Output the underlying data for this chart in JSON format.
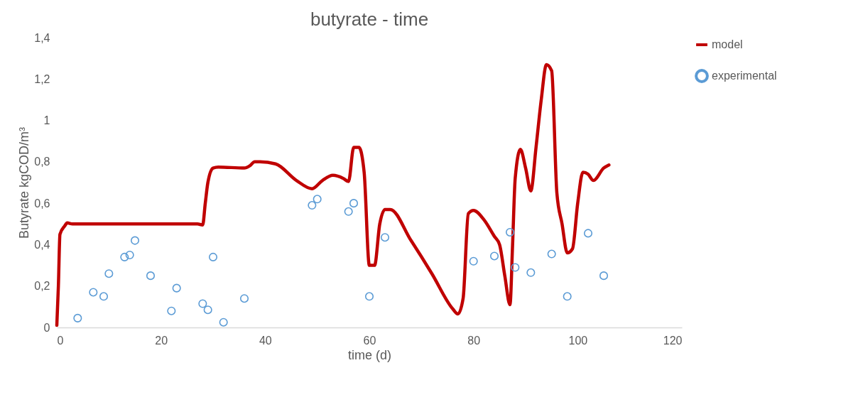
{
  "chart_data": {
    "type": "line",
    "title": "butyrate - time",
    "xlabel": "time (d)",
    "ylabel": "Butyrate kgCOD/m³",
    "xlim": [
      0,
      120
    ],
    "xticks": [
      0,
      20,
      40,
      60,
      80,
      100,
      120
    ],
    "ylim": [
      0,
      1.4
    ],
    "yticks": [
      0,
      {
        "value": 0.2,
        "label": "0,2"
      },
      {
        "value": 0.4,
        "label": "0,4"
      },
      {
        "value": 0.6,
        "label": "0,6"
      },
      {
        "value": 0.8,
        "label": "0,8"
      },
      1,
      {
        "value": 1.2,
        "label": "1,2"
      },
      {
        "value": 1.4,
        "label": "1,4"
      }
    ],
    "grid": false,
    "legend": "right",
    "series": [
      {
        "name": "model",
        "type": "line",
        "color": "#c00000",
        "line_style": "solid",
        "marker": "none",
        "x": [
          0,
          0.3,
          0.6,
          1.5,
          2,
          3,
          27,
          28,
          28.5,
          29,
          30,
          31,
          36,
          37,
          38,
          39,
          42,
          46,
          49,
          51,
          53,
          55,
          56,
          57,
          58,
          59,
          60,
          61,
          62,
          63,
          64,
          68,
          72,
          76,
          77,
          78,
          79,
          80,
          82,
          84,
          85,
          86,
          87,
          87.5,
          88,
          89,
          90,
          91,
          92,
          93,
          94,
          95,
          96,
          97,
          98,
          99,
          100,
          101,
          102,
          103,
          105,
          106
        ],
        "values": [
          0.01,
          0.2,
          0.45,
          0.49,
          0.505,
          0.5,
          0.5,
          0.495,
          0.6,
          0.7,
          0.77,
          0.775,
          0.77,
          0.78,
          0.8,
          0.8,
          0.79,
          0.71,
          0.67,
          0.71,
          0.735,
          0.72,
          0.705,
          0.87,
          0.87,
          0.75,
          0.3,
          0.3,
          0.5,
          0.57,
          0.57,
          0.42,
          0.26,
          0.09,
          0.065,
          0.14,
          0.55,
          0.565,
          0.52,
          0.44,
          0.4,
          0.25,
          0.11,
          0.4,
          0.72,
          0.86,
          0.77,
          0.66,
          0.87,
          1.1,
          1.27,
          1.24,
          0.65,
          0.5,
          0.36,
          0.38,
          0.6,
          0.75,
          0.74,
          0.71,
          0.77,
          0.785
        ]
      },
      {
        "name": "experimental",
        "type": "scatter",
        "color": "#5b9bd5",
        "marker": "circle",
        "x": [
          4,
          7,
          9,
          10,
          13,
          14,
          15,
          18,
          22,
          23,
          28,
          29,
          30,
          32,
          36,
          49,
          50,
          56,
          57,
          60,
          63,
          80,
          84,
          87,
          88,
          91,
          95,
          98,
          102,
          105
        ],
        "values": [
          0.045,
          0.17,
          0.15,
          0.26,
          0.34,
          0.35,
          0.42,
          0.25,
          0.08,
          0.19,
          0.115,
          0.085,
          0.34,
          0.025,
          0.14,
          0.59,
          0.62,
          0.56,
          0.6,
          0.15,
          0.435,
          0.32,
          0.345,
          0.46,
          0.29,
          0.265,
          0.355,
          0.15,
          0.455,
          0.25
        ]
      }
    ]
  }
}
